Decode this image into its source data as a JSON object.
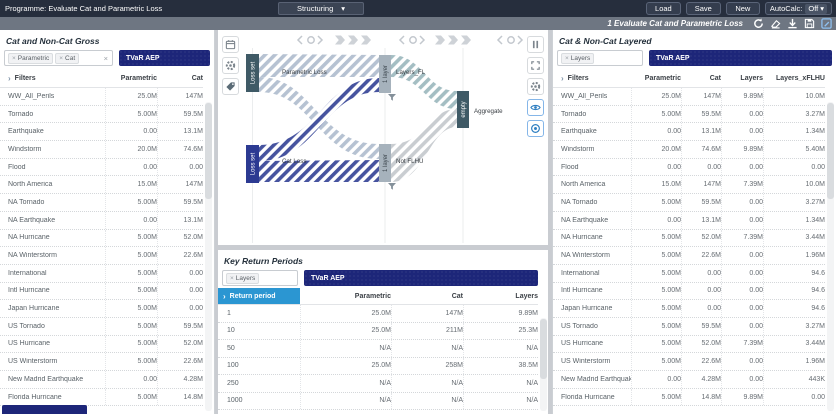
{
  "icons": {
    "close": "×",
    "caret_down": "▾",
    "chevron_right": "›"
  },
  "colors": {
    "topbar_bg": "#262e3d",
    "subbar_bg": "#6e7682",
    "navy": "#1d2679",
    "blue_header": "#2b96d2",
    "accent_blue": "#2f7fc1"
  },
  "topbar": {
    "programme_label": "Programme: Evaluate Cat and Parametric Loss",
    "mode_dropdown": "Structuring",
    "load": "Load",
    "save": "Save",
    "new": "New",
    "autocalc_label": "AutoCalc:",
    "autocalc_value": "Off"
  },
  "subbar": {
    "title": "1 Evaluate Cat and Parametric Loss"
  },
  "gross_panel": {
    "title": "Cat and Non-Cat Gross",
    "tags": [
      "Parametric",
      "Cat"
    ],
    "metric": "TVaR AEP",
    "columns": [
      "Filters",
      "Parametric",
      "Cat"
    ],
    "rows": [
      {
        "label": "WW_All_Perils",
        "values": [
          "25.0M",
          "147M"
        ]
      },
      {
        "label": "Tornado",
        "values": [
          "5.00M",
          "59.5M"
        ]
      },
      {
        "label": "Earthquake",
        "values": [
          "0.00",
          "13.1M"
        ]
      },
      {
        "label": "Windstorm",
        "values": [
          "20.0M",
          "74.6M"
        ]
      },
      {
        "label": "Flood",
        "values": [
          "0.00",
          "0.00"
        ]
      },
      {
        "label": "North America",
        "values": [
          "15.0M",
          "147M"
        ]
      },
      {
        "label": "NA Tornado",
        "values": [
          "5.00M",
          "59.5M"
        ]
      },
      {
        "label": "NA Earthquake",
        "values": [
          "0.00",
          "13.1M"
        ]
      },
      {
        "label": "NA Hurricane",
        "values": [
          "5.00M",
          "52.0M"
        ]
      },
      {
        "label": "NA Winterstorm",
        "values": [
          "5.00M",
          "22.6M"
        ]
      },
      {
        "label": "International",
        "values": [
          "5.00M",
          "0.00"
        ]
      },
      {
        "label": "Intl Hurricane",
        "values": [
          "5.00M",
          "0.00"
        ]
      },
      {
        "label": "Japan Hurricane",
        "values": [
          "5.00M",
          "0.00"
        ]
      },
      {
        "label": "US Tornado",
        "values": [
          "5.00M",
          "59.5M"
        ]
      },
      {
        "label": "US Hurricane",
        "values": [
          "5.00M",
          "52.0M"
        ]
      },
      {
        "label": "US Winterstorm",
        "values": [
          "5.00M",
          "22.6M"
        ]
      },
      {
        "label": "New Madrid Earthquake",
        "values": [
          "0.00",
          "4.28M"
        ]
      },
      {
        "label": "Florida Hurricane",
        "values": [
          "5.00M",
          "14.8M"
        ]
      }
    ]
  },
  "diagram": {
    "nodes": {
      "loss_set_top": "Loss set",
      "loss_set_bottom": "Loss set",
      "layer_top": "1 layer",
      "layer_bottom": "1 layer",
      "empty": "empty"
    },
    "labels": {
      "parametric_loss": "Parametric Loss",
      "cat_loss": "Cat Loss",
      "layers_fl": "Layers_FL",
      "not_flhu": "Not FLHU",
      "aggregate": "Aggregate"
    }
  },
  "key_panel": {
    "title": "Key Return Periods",
    "tags": [
      "Layers"
    ],
    "metric": "TVaR AEP",
    "columns": [
      "Return period",
      "Parametric",
      "Cat",
      "Layers"
    ],
    "rows": [
      {
        "label": "1",
        "values": [
          "25.0M",
          "147M",
          "9.89M"
        ]
      },
      {
        "label": "10",
        "values": [
          "25.0M",
          "211M",
          "25.3M"
        ]
      },
      {
        "label": "50",
        "values": [
          "N/A",
          "N/A",
          "N/A"
        ]
      },
      {
        "label": "100",
        "values": [
          "25.0M",
          "258M",
          "38.5M"
        ]
      },
      {
        "label": "250",
        "values": [
          "N/A",
          "N/A",
          "N/A"
        ]
      },
      {
        "label": "1000",
        "values": [
          "N/A",
          "N/A",
          "N/A"
        ]
      }
    ]
  },
  "layered_panel": {
    "title": "Cat & Non-Cat Layered",
    "tags": [
      "Layers"
    ],
    "metric": "TVaR AEP",
    "columns": [
      "Filters",
      "Parametric",
      "Cat",
      "Layers",
      "Layers_xFLHU"
    ],
    "rows": [
      {
        "label": "WW_All_Perils",
        "values": [
          "25.0M",
          "147M",
          "9.89M",
          "10.0M"
        ]
      },
      {
        "label": "Tornado",
        "values": [
          "5.00M",
          "59.5M",
          "0.00",
          "3.27M"
        ]
      },
      {
        "label": "Earthquake",
        "values": [
          "0.00",
          "13.1M",
          "0.00",
          "1.34M"
        ]
      },
      {
        "label": "Windstorm",
        "values": [
          "20.0M",
          "74.6M",
          "9.89M",
          "5.40M"
        ]
      },
      {
        "label": "Flood",
        "values": [
          "0.00",
          "0.00",
          "0.00",
          "0.00"
        ]
      },
      {
        "label": "North America",
        "values": [
          "15.0M",
          "147M",
          "7.39M",
          "10.0M"
        ]
      },
      {
        "label": "NA Tornado",
        "values": [
          "5.00M",
          "59.5M",
          "0.00",
          "3.27M"
        ]
      },
      {
        "label": "NA Earthquake",
        "values": [
          "0.00",
          "13.1M",
          "0.00",
          "1.34M"
        ]
      },
      {
        "label": "NA Hurricane",
        "values": [
          "5.00M",
          "52.0M",
          "7.39M",
          "3.44M"
        ]
      },
      {
        "label": "NA Winterstorm",
        "values": [
          "5.00M",
          "22.6M",
          "0.00",
          "1.96M"
        ]
      },
      {
        "label": "International",
        "values": [
          "5.00M",
          "0.00",
          "0.00",
          "94.6"
        ]
      },
      {
        "label": "Intl Hurricane",
        "values": [
          "5.00M",
          "0.00",
          "0.00",
          "94.6"
        ]
      },
      {
        "label": "Japan Hurricane",
        "values": [
          "5.00M",
          "0.00",
          "0.00",
          "94.6"
        ]
      },
      {
        "label": "US Tornado",
        "values": [
          "5.00M",
          "59.5M",
          "0.00",
          "3.27M"
        ]
      },
      {
        "label": "US Hurricane",
        "values": [
          "5.00M",
          "52.0M",
          "7.39M",
          "3.44M"
        ]
      },
      {
        "label": "US Winterstorm",
        "values": [
          "5.00M",
          "22.6M",
          "0.00",
          "1.96M"
        ]
      },
      {
        "label": "New Madrid Earthquake",
        "values": [
          "0.00",
          "4.28M",
          "0.00",
          "443K"
        ]
      },
      {
        "label": "Florida Hurricane",
        "values": [
          "5.00M",
          "14.8M",
          "9.89M",
          "0.00"
        ]
      }
    ]
  }
}
